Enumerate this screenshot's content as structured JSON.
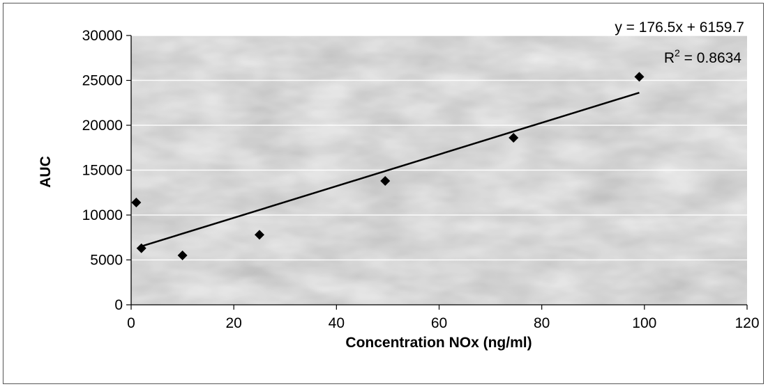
{
  "chart_data": {
    "type": "scatter",
    "title": "",
    "xlabel": "Concentration NOx (ng/ml)",
    "ylabel": "AUC",
    "xlim": [
      0,
      120
    ],
    "ylim": [
      0,
      30000
    ],
    "x_ticks": [
      0,
      20,
      40,
      60,
      80,
      100,
      120
    ],
    "y_ticks": [
      0,
      5000,
      10000,
      15000,
      20000,
      25000,
      30000
    ],
    "grid": "horizontal",
    "legend": "none",
    "series": [
      {
        "marker": "diamond",
        "color": "#000000",
        "points": [
          {
            "x": 1,
            "y": 11400
          },
          {
            "x": 2,
            "y": 6300
          },
          {
            "x": 10,
            "y": 5500
          },
          {
            "x": 25,
            "y": 7800
          },
          {
            "x": 49.5,
            "y": 13800
          },
          {
            "x": 74.5,
            "y": 18600
          },
          {
            "x": 99,
            "y": 25400
          }
        ]
      }
    ],
    "trendline": {
      "type": "linear",
      "slope": 176.5,
      "intercept": 6159.7,
      "x_range": [
        2,
        99
      ],
      "color": "#000000",
      "equation_label": "y = 176.5x + 6159.7",
      "r2_prefix": "R",
      "r2_superscript": "2",
      "r2_value": " = 0.8634"
    },
    "plot_background": "#b8b8b8"
  }
}
